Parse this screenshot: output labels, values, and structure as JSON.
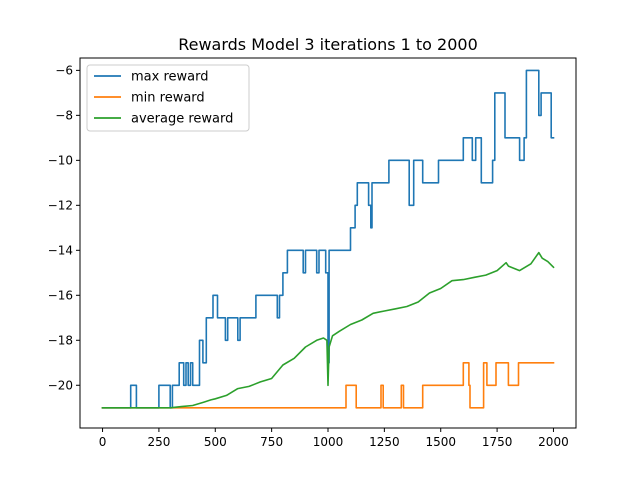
{
  "chart_data": {
    "type": "line",
    "title": "Rewards Model 3 iterations 1 to 2000",
    "xlabel": "",
    "ylabel": "",
    "xlim": [
      -100,
      2100
    ],
    "ylim": [
      -21.9,
      -5.45
    ],
    "xticks": [
      0,
      250,
      500,
      750,
      1000,
      1250,
      1500,
      1750,
      2000
    ],
    "yticks": [
      -20,
      -18,
      -16,
      -14,
      -12,
      -10,
      -8,
      -6
    ],
    "xtick_labels": [
      "0",
      "250",
      "500",
      "750",
      "1000",
      "1250",
      "1500",
      "1750",
      "2000"
    ],
    "ytick_labels": [
      "−20",
      "−18",
      "−16",
      "−14",
      "−12",
      "−10",
      "−8",
      "−6"
    ],
    "grid": false,
    "legend_position": "top-left",
    "series": [
      {
        "name": "max reward",
        "color": "#1f77b4",
        "step": true,
        "points": [
          [
            0,
            -21
          ],
          [
            125,
            -21
          ],
          [
            125,
            -20
          ],
          [
            150,
            -20
          ],
          [
            150,
            -21
          ],
          [
            250,
            -21
          ],
          [
            250,
            -20
          ],
          [
            300,
            -20
          ],
          [
            300,
            -21
          ],
          [
            310,
            -21
          ],
          [
            310,
            -20
          ],
          [
            330,
            -20
          ],
          [
            330,
            -20
          ],
          [
            340,
            -20
          ],
          [
            340,
            -19
          ],
          [
            360,
            -19
          ],
          [
            360,
            -20
          ],
          [
            370,
            -20
          ],
          [
            370,
            -19
          ],
          [
            380,
            -19
          ],
          [
            380,
            -20
          ],
          [
            390,
            -20
          ],
          [
            390,
            -19
          ],
          [
            400,
            -19
          ],
          [
            400,
            -20
          ],
          [
            430,
            -20
          ],
          [
            430,
            -18
          ],
          [
            445,
            -18
          ],
          [
            445,
            -19
          ],
          [
            460,
            -19
          ],
          [
            460,
            -17
          ],
          [
            490,
            -17
          ],
          [
            490,
            -16
          ],
          [
            510,
            -16
          ],
          [
            510,
            -17
          ],
          [
            545,
            -17
          ],
          [
            545,
            -18
          ],
          [
            555,
            -18
          ],
          [
            555,
            -17
          ],
          [
            600,
            -17
          ],
          [
            600,
            -18
          ],
          [
            610,
            -18
          ],
          [
            610,
            -17
          ],
          [
            680,
            -17
          ],
          [
            680,
            -16
          ],
          [
            775,
            -16
          ],
          [
            775,
            -17
          ],
          [
            785,
            -17
          ],
          [
            785,
            -16
          ],
          [
            800,
            -16
          ],
          [
            800,
            -15
          ],
          [
            820,
            -15
          ],
          [
            820,
            -14
          ],
          [
            890,
            -14
          ],
          [
            890,
            -15
          ],
          [
            900,
            -15
          ],
          [
            900,
            -14
          ],
          [
            950,
            -14
          ],
          [
            950,
            -15
          ],
          [
            960,
            -15
          ],
          [
            960,
            -14
          ],
          [
            990,
            -14
          ],
          [
            990,
            -15
          ],
          [
            1000,
            -15
          ],
          [
            1000,
            -19
          ],
          [
            1005,
            -19
          ],
          [
            1005,
            -14
          ],
          [
            1100,
            -14
          ],
          [
            1100,
            -13
          ],
          [
            1120,
            -13
          ],
          [
            1120,
            -12
          ],
          [
            1130,
            -12
          ],
          [
            1130,
            -11
          ],
          [
            1180,
            -11
          ],
          [
            1180,
            -12
          ],
          [
            1190,
            -12
          ],
          [
            1190,
            -13
          ],
          [
            1195,
            -13
          ],
          [
            1195,
            -11
          ],
          [
            1270,
            -11
          ],
          [
            1270,
            -10
          ],
          [
            1320,
            -10
          ],
          [
            1320,
            -10
          ],
          [
            1360,
            -10
          ],
          [
            1360,
            -12
          ],
          [
            1380,
            -12
          ],
          [
            1380,
            -10
          ],
          [
            1420,
            -10
          ],
          [
            1420,
            -11
          ],
          [
            1490,
            -11
          ],
          [
            1490,
            -10
          ],
          [
            1600,
            -10
          ],
          [
            1600,
            -9
          ],
          [
            1640,
            -9
          ],
          [
            1640,
            -10
          ],
          [
            1655,
            -10
          ],
          [
            1655,
            -9
          ],
          [
            1680,
            -9
          ],
          [
            1680,
            -11
          ],
          [
            1730,
            -11
          ],
          [
            1730,
            -10
          ],
          [
            1740,
            -10
          ],
          [
            1740,
            -7
          ],
          [
            1785,
            -7
          ],
          [
            1785,
            -9
          ],
          [
            1850,
            -9
          ],
          [
            1850,
            -10
          ],
          [
            1870,
            -10
          ],
          [
            1870,
            -9
          ],
          [
            1880,
            -9
          ],
          [
            1880,
            -6
          ],
          [
            1935,
            -6
          ],
          [
            1935,
            -8
          ],
          [
            1945,
            -8
          ],
          [
            1945,
            -7
          ],
          [
            1990,
            -7
          ],
          [
            1990,
            -9
          ],
          [
            2000,
            -9
          ]
        ]
      },
      {
        "name": "min reward",
        "color": "#ff7f0e",
        "step": true,
        "points": [
          [
            0,
            -21
          ],
          [
            1080,
            -21
          ],
          [
            1080,
            -20
          ],
          [
            1125,
            -20
          ],
          [
            1125,
            -21
          ],
          [
            1235,
            -21
          ],
          [
            1235,
            -20
          ],
          [
            1245,
            -20
          ],
          [
            1245,
            -21
          ],
          [
            1325,
            -21
          ],
          [
            1325,
            -20
          ],
          [
            1335,
            -20
          ],
          [
            1335,
            -21
          ],
          [
            1420,
            -21
          ],
          [
            1420,
            -20
          ],
          [
            1600,
            -20
          ],
          [
            1600,
            -19
          ],
          [
            1625,
            -19
          ],
          [
            1625,
            -20
          ],
          [
            1630,
            -20
          ],
          [
            1630,
            -21
          ],
          [
            1690,
            -21
          ],
          [
            1690,
            -19
          ],
          [
            1705,
            -19
          ],
          [
            1705,
            -20
          ],
          [
            1745,
            -20
          ],
          [
            1745,
            -19
          ],
          [
            1800,
            -19
          ],
          [
            1800,
            -20
          ],
          [
            1845,
            -20
          ],
          [
            1845,
            -19
          ],
          [
            2000,
            -19
          ]
        ]
      },
      {
        "name": "average reward",
        "color": "#2ca02c",
        "step": false,
        "points": [
          [
            0,
            -21
          ],
          [
            100,
            -21
          ],
          [
            200,
            -21
          ],
          [
            300,
            -21
          ],
          [
            350,
            -20.95
          ],
          [
            400,
            -20.9
          ],
          [
            450,
            -20.75
          ],
          [
            480,
            -20.65
          ],
          [
            500,
            -20.6
          ],
          [
            550,
            -20.45
          ],
          [
            600,
            -20.15
          ],
          [
            650,
            -20.05
          ],
          [
            700,
            -19.85
          ],
          [
            750,
            -19.7
          ],
          [
            800,
            -19.1
          ],
          [
            850,
            -18.8
          ],
          [
            900,
            -18.3
          ],
          [
            950,
            -18.0
          ],
          [
            980,
            -17.9
          ],
          [
            995,
            -18.0
          ],
          [
            1000,
            -20.0
          ],
          [
            1005,
            -18.3
          ],
          [
            1020,
            -17.8
          ],
          [
            1050,
            -17.6
          ],
          [
            1100,
            -17.3
          ],
          [
            1150,
            -17.1
          ],
          [
            1200,
            -16.8
          ],
          [
            1250,
            -16.7
          ],
          [
            1300,
            -16.6
          ],
          [
            1350,
            -16.5
          ],
          [
            1400,
            -16.3
          ],
          [
            1450,
            -15.9
          ],
          [
            1500,
            -15.7
          ],
          [
            1550,
            -15.35
          ],
          [
            1600,
            -15.3
          ],
          [
            1650,
            -15.2
          ],
          [
            1700,
            -15.1
          ],
          [
            1750,
            -14.9
          ],
          [
            1790,
            -14.55
          ],
          [
            1800,
            -14.7
          ],
          [
            1850,
            -14.9
          ],
          [
            1900,
            -14.6
          ],
          [
            1935,
            -14.1
          ],
          [
            1950,
            -14.35
          ],
          [
            1975,
            -14.5
          ],
          [
            2000,
            -14.75
          ]
        ]
      }
    ]
  }
}
